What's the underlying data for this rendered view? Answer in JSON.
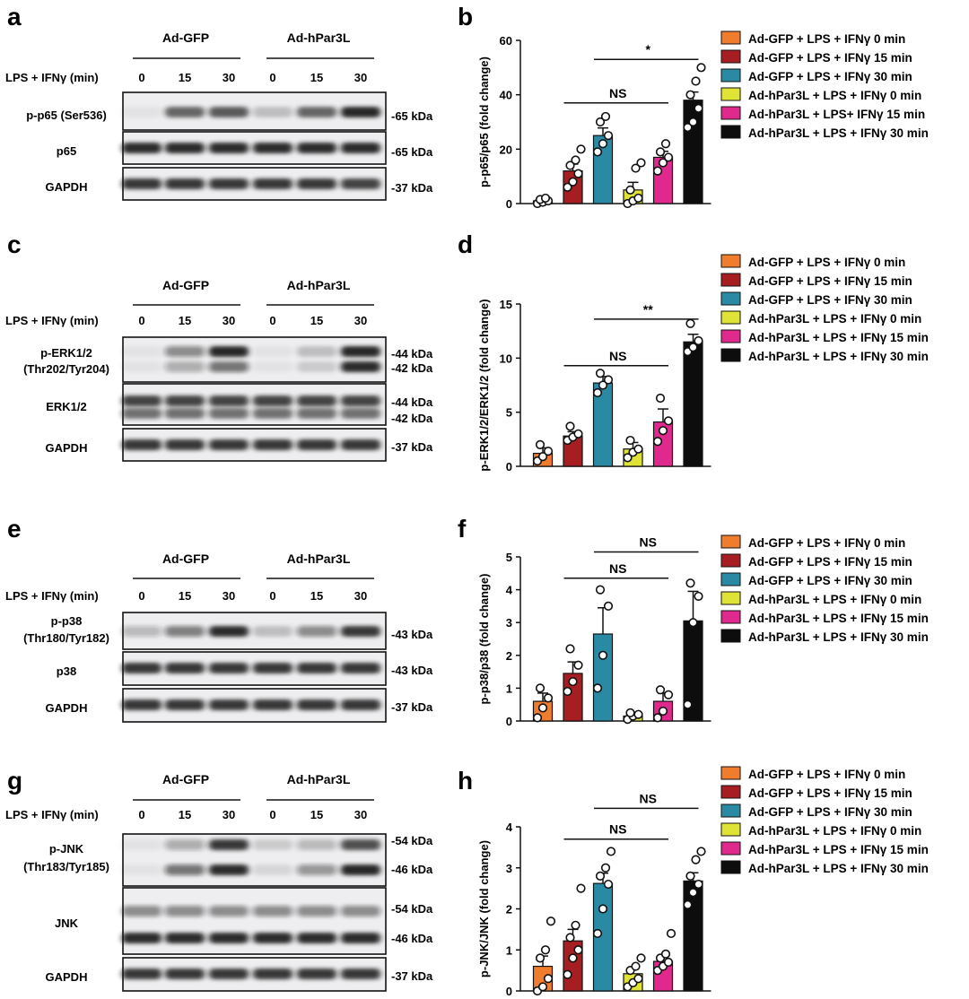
{
  "blot_panels": [
    {
      "letter": "a",
      "group_labels": [
        "Ad-GFP",
        "Ad-hPar3L"
      ],
      "condition_label": "LPS + IFNγ (min)",
      "lanes": [
        "0",
        "15",
        "30",
        "0",
        "15",
        "30"
      ],
      "blots": [
        {
          "label_lines": [
            "p-p65 (Ser536)"
          ],
          "kda": [
            "-65 kDa"
          ],
          "bands": [
            [
              0.05,
              0.65,
              0.7,
              0.2,
              0.65,
              0.95
            ]
          ]
        },
        {
          "label_lines": [
            "p65"
          ],
          "kda": [
            "-65 kDa"
          ],
          "bands": [
            [
              0.9,
              0.9,
              0.9,
              0.9,
              0.9,
              0.9
            ]
          ]
        },
        {
          "label_lines": [
            "GAPDH"
          ],
          "kda": [
            "-37 kDa"
          ],
          "bands": [
            [
              0.85,
              0.85,
              0.85,
              0.85,
              0.85,
              0.8
            ]
          ]
        }
      ]
    },
    {
      "letter": "c",
      "group_labels": [
        "Ad-GFP",
        "Ad-hPar3L"
      ],
      "condition_label": "LPS + IFNγ (min)",
      "lanes": [
        "0",
        "15",
        "30",
        "0",
        "15",
        "30"
      ],
      "blots": [
        {
          "label_lines": [
            "p-ERK1/2",
            "(Thr202/Tyr204)"
          ],
          "kda": [
            "-44 kDa",
            "-42 kDa"
          ],
          "bands": [
            [
              0.05,
              0.45,
              0.95,
              0.05,
              0.2,
              0.95
            ],
            [
              0.05,
              0.3,
              0.55,
              0.05,
              0.15,
              0.9
            ]
          ]
        },
        {
          "label_lines": [
            "ERK1/2"
          ],
          "kda": [
            "-44 kDa",
            "-42 kDa"
          ],
          "bands": [
            [
              0.8,
              0.8,
              0.8,
              0.8,
              0.8,
              0.8
            ],
            [
              0.6,
              0.6,
              0.6,
              0.6,
              0.6,
              0.6
            ]
          ]
        },
        {
          "label_lines": [
            "GAPDH"
          ],
          "kda": [
            "-37 kDa"
          ],
          "bands": [
            [
              0.85,
              0.85,
              0.85,
              0.85,
              0.85,
              0.85
            ]
          ]
        }
      ]
    },
    {
      "letter": "e",
      "group_labels": [
        "Ad-GFP",
        "Ad-hPar3L"
      ],
      "condition_label": "LPS + IFNγ (min)",
      "lanes": [
        "0",
        "15",
        "30",
        "0",
        "15",
        "30"
      ],
      "blots": [
        {
          "label_lines": [
            "p-p38",
            "(Thr180/Tyr182)"
          ],
          "kda": [
            "-43 kDa"
          ],
          "bands": [
            [
              0.25,
              0.5,
              0.9,
              0.2,
              0.45,
              0.85
            ]
          ]
        },
        {
          "label_lines": [
            "p38"
          ],
          "kda": [
            "-43 kDa"
          ],
          "bands": [
            [
              0.85,
              0.85,
              0.85,
              0.85,
              0.85,
              0.85
            ]
          ]
        },
        {
          "label_lines": [
            "GAPDH"
          ],
          "kda": [
            "-37 kDa"
          ],
          "bands": [
            [
              0.85,
              0.85,
              0.85,
              0.85,
              0.85,
              0.85
            ]
          ]
        }
      ]
    },
    {
      "letter": "g",
      "group_labels": [
        "Ad-GFP",
        "Ad-hPar3L"
      ],
      "condition_label": "LPS + IFNγ (min)",
      "lanes": [
        "0",
        "15",
        "30",
        "0",
        "15",
        "30"
      ],
      "blots": [
        {
          "label_lines": [
            "p-JNK",
            "(Thr183/Tyr185)"
          ],
          "kda": [
            "-54 kDa",
            "-46 kDa"
          ],
          "bands": [
            [
              0.05,
              0.3,
              0.85,
              0.15,
              0.25,
              0.75
            ],
            [
              0.05,
              0.55,
              0.9,
              0.1,
              0.4,
              0.95
            ]
          ]
        },
        {
          "label_lines": [
            "JNK"
          ],
          "kda": [
            "-54 kDa",
            "-46 kDa"
          ],
          "bands": [
            [
              0.45,
              0.45,
              0.45,
              0.45,
              0.45,
              0.45
            ],
            [
              0.9,
              0.9,
              0.9,
              0.9,
              0.9,
              0.9
            ]
          ]
        },
        {
          "label_lines": [
            "GAPDH"
          ],
          "kda": [
            "-37 kDa"
          ],
          "bands": [
            [
              0.85,
              0.85,
              0.85,
              0.85,
              0.85,
              0.85
            ]
          ]
        }
      ]
    }
  ],
  "chart_data": [
    {
      "letter": "b",
      "type": "bar",
      "ylabel": "p-p65/p65 (fold change)",
      "ylim": [
        0,
        60
      ],
      "yticks": [
        0,
        20,
        40,
        60
      ],
      "categories": [
        "Ad-GFP + LPS + IFNγ 0 min",
        "Ad-GFP + LPS + IFNγ 15 min",
        "Ad-GFP + LPS + IFNγ 30 min",
        "Ad-hPar3L + LPS + IFNγ 0 min",
        "Ad-hPar3L + LPS+ IFNγ 15 min",
        "Ad-hPar3L + LPS + IFNγ 30 min"
      ],
      "colors": [
        "#f07c2e",
        "#a61e22",
        "#2a8aa4",
        "#dfe335",
        "#e0298c",
        "#0d0d0d"
      ],
      "values": [
        1,
        12,
        25,
        5,
        17,
        38
      ],
      "errors": [
        0.6,
        2.5,
        2.8,
        2.8,
        2.2,
        3.0
      ],
      "points": [
        [
          0,
          0.5,
          1,
          1.5,
          2
        ],
        [
          6,
          8,
          11,
          14,
          16,
          20
        ],
        [
          19,
          22,
          25,
          30,
          32
        ],
        [
          0,
          1,
          2,
          5,
          13,
          15
        ],
        [
          12,
          15,
          17,
          19,
          22
        ],
        [
          28,
          30,
          35,
          40,
          45,
          50
        ]
      ],
      "annotations": [
        {
          "text": "NS",
          "from": 1,
          "to": 4,
          "y": 37
        },
        {
          "text": "*",
          "from": 2,
          "to": 5,
          "y": 53
        }
      ]
    },
    {
      "letter": "d",
      "type": "bar",
      "ylabel": "p-ERK1/2/ERK1/2 (fold change)",
      "ylim": [
        0,
        15
      ],
      "yticks": [
        0,
        5,
        10,
        15
      ],
      "categories": [
        "Ad-GFP + LPS + IFNγ 0 min",
        "Ad-GFP + LPS + IFNγ 15 min",
        "Ad-GFP + LPS + IFNγ 30 min",
        "Ad-hPar3L + LPS + IFNγ 0 min",
        "Ad-hPar3L + LPS + IFNγ 15 min",
        "Ad-hPar3L + LPS + IFNγ 30 min"
      ],
      "colors": [
        "#f07c2e",
        "#a61e22",
        "#2a8aa4",
        "#dfe335",
        "#e0298c",
        "#0d0d0d"
      ],
      "values": [
        1.2,
        2.8,
        7.7,
        1.6,
        4.1,
        11.5
      ],
      "errors": [
        0.5,
        0.4,
        0.6,
        0.6,
        1.2,
        0.7
      ],
      "points": [
        [
          0.5,
          0.9,
          1.4,
          2.0
        ],
        [
          2.4,
          2.7,
          3.0,
          3.7
        ],
        [
          6.8,
          7.5,
          8.0,
          8.6
        ],
        [
          0.8,
          1.3,
          1.6,
          2.4
        ],
        [
          2.3,
          3.3,
          4.2,
          6.3
        ],
        [
          10.6,
          11.0,
          11.6,
          13.2
        ]
      ],
      "annotations": [
        {
          "text": "NS",
          "from": 1,
          "to": 4,
          "y": 9.3
        },
        {
          "text": "**",
          "from": 2,
          "to": 5,
          "y": 13.6
        }
      ]
    },
    {
      "letter": "f",
      "type": "bar",
      "ylabel": "p-p38/p38 (fold change)",
      "ylim": [
        0,
        5
      ],
      "yticks": [
        0,
        1,
        2,
        3,
        4,
        5
      ],
      "categories": [
        "Ad-GFP + LPS + IFNγ 0 min",
        "Ad-GFP + LPS + IFNγ 15 min",
        "Ad-GFP + LPS + IFNγ 30 min",
        "Ad-hPar3L + LPS + IFNγ 0 min",
        "Ad-hPar3L + LPS + IFNγ 15 min",
        "Ad-hPar3L + LPS + IFNγ 30 min"
      ],
      "colors": [
        "#f07c2e",
        "#a61e22",
        "#2a8aa4",
        "#dfe335",
        "#e0298c",
        "#0d0d0d"
      ],
      "values": [
        0.6,
        1.45,
        2.65,
        0.15,
        0.6,
        3.05
      ],
      "errors": [
        0.25,
        0.35,
        0.8,
        0.05,
        0.25,
        0.9
      ],
      "points": [
        [
          0.1,
          0.4,
          0.7,
          1.0
        ],
        [
          0.9,
          1.2,
          1.7,
          2.2
        ],
        [
          1.0,
          2.0,
          3.5,
          4.0
        ],
        [
          0.05,
          0.15,
          0.2,
          0.25
        ],
        [
          0.1,
          0.3,
          0.8,
          0.95
        ],
        [
          0.5,
          3.0,
          3.8,
          4.2
        ]
      ],
      "annotations": [
        {
          "text": "NS",
          "from": 1,
          "to": 4,
          "y": 4.35
        },
        {
          "text": "NS",
          "from": 2,
          "to": 5,
          "y": 5.15
        }
      ]
    },
    {
      "letter": "h",
      "type": "bar",
      "ylabel": "p-JNK/JNK (fold change)",
      "ylim": [
        0,
        4
      ],
      "yticks": [
        0,
        1,
        2,
        3,
        4
      ],
      "categories": [
        "Ad-GFP + LPS + IFNγ 0 min",
        "Ad-GFP + LPS + IFNγ 15 min",
        "Ad-GFP + LPS + IFNγ 30 min",
        "Ad-hPar3L + LPS + IFNγ 0 min",
        "Ad-hPar3L + LPS + IFNγ 15 min",
        "Ad-hPar3L + LPS + IFNγ 30 min"
      ],
      "colors": [
        "#f07c2e",
        "#a61e22",
        "#2a8aa4",
        "#dfe335",
        "#e0298c",
        "#0d0d0d"
      ],
      "values": [
        0.6,
        1.22,
        2.62,
        0.42,
        0.72,
        2.68
      ],
      "errors": [
        0.25,
        0.28,
        0.25,
        0.12,
        0.15,
        0.2
      ],
      "points": [
        [
          0.0,
          0.1,
          0.3,
          0.8,
          1.0,
          1.7
        ],
        [
          0.4,
          0.8,
          1.0,
          1.3,
          1.6,
          2.5
        ],
        [
          1.4,
          2.0,
          2.6,
          2.8,
          3.0,
          3.4
        ],
        [
          0.1,
          0.2,
          0.3,
          0.5,
          0.6,
          0.8
        ],
        [
          0.5,
          0.6,
          0.7,
          0.8,
          0.9,
          1.4
        ],
        [
          2.1,
          2.4,
          2.6,
          2.8,
          3.2,
          3.4
        ]
      ],
      "annotations": [
        {
          "text": "NS",
          "from": 1,
          "to": 4,
          "y": 3.7
        },
        {
          "text": "NS",
          "from": 2,
          "to": 5,
          "y": 4.45
        }
      ]
    }
  ]
}
